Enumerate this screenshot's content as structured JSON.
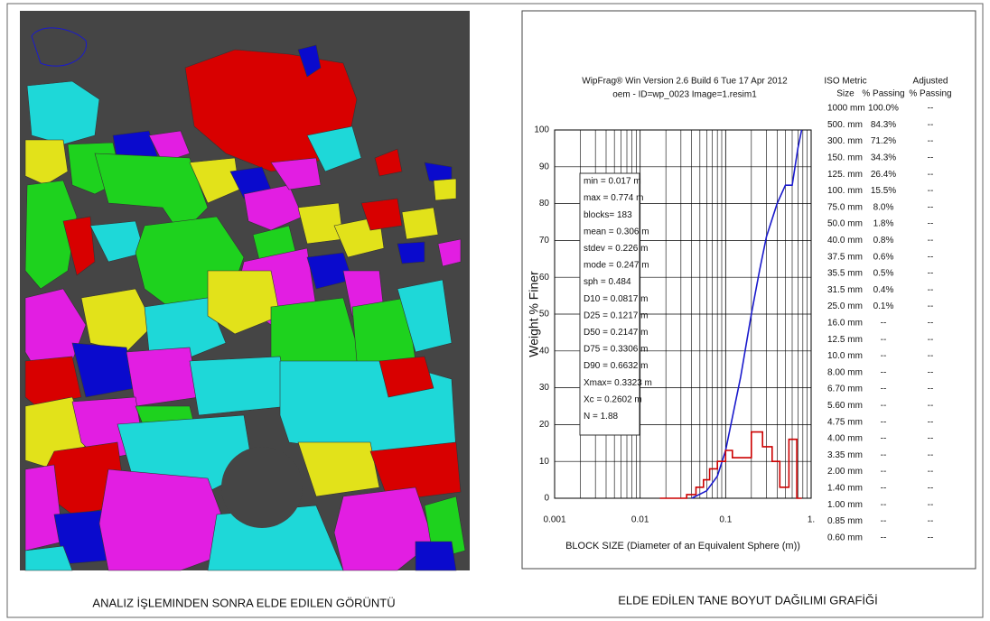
{
  "captions": {
    "left": "ANALIZ İŞLEMINDEN SONRA ELDE EDILEN GÖRÜNTÜ",
    "right": "ELDE EDİLEN TANE BOYUT DAĞILIMI GRAFİĞİ"
  },
  "chart_data": {
    "type": "line",
    "title": "WipFrag® Win Version  2.6 Build 6 Tue 17 Apr 2012",
    "subtitle": "oem -  ID=wp_0023 Image=1.resim1",
    "x_label": "BLOCK SIZE (Diameter of an Equivalent Sphere (m))",
    "y_label": "Weight % Finer",
    "xlog": true,
    "grid": true,
    "xlim": [
      0.001,
      1
    ],
    "ylim": [
      0,
      100
    ],
    "xticks": [
      0.001,
      0.01,
      0.1,
      {
        "value": 1,
        "label": "1."
      }
    ],
    "xminorticks": [
      0.002,
      0.003,
      0.004,
      0.005,
      0.006,
      0.007,
      0.008,
      0.009,
      0.02,
      0.03,
      0.04,
      0.05,
      0.06,
      0.07,
      0.08,
      0.09,
      0.2,
      0.3,
      0.4,
      0.5,
      0.6,
      0.7,
      0.8,
      0.9
    ],
    "yticks": [
      0,
      10,
      20,
      30,
      40,
      50,
      60,
      70,
      80,
      90,
      100
    ],
    "series": [
      {
        "color": "#1a1acc",
        "x": [
          0.04,
          0.06,
          0.08,
          0.1,
          0.15,
          0.2,
          0.25,
          0.3,
          0.4,
          0.5,
          0.6,
          0.7,
          0.774
        ],
        "values": [
          0,
          2,
          6,
          13,
          33,
          50,
          62,
          71,
          80,
          85,
          85,
          95,
          100
        ]
      },
      {
        "color": "#cc0000",
        "x": [
          0.017,
          0.035,
          0.035,
          0.045,
          0.045,
          0.055,
          0.055,
          0.065,
          0.065,
          0.08,
          0.08,
          0.1,
          0.1,
          0.12,
          0.12,
          0.2,
          0.2,
          0.27,
          0.27,
          0.35,
          0.35,
          0.43,
          0.43,
          0.55,
          0.55,
          0.68,
          0.68,
          0.774
        ],
        "values": [
          0,
          0,
          1,
          1,
          3,
          3,
          5,
          5,
          8,
          8,
          10,
          10,
          13,
          13,
          11,
          11,
          18,
          18,
          14,
          14,
          10,
          10,
          3,
          3,
          16,
          16,
          0,
          0
        ]
      }
    ],
    "annotations": [
      "min   = 0.017 m",
      "max   = 0.774 m",
      "blocks= 183",
      "mean  = 0.306 m",
      "stdev = 0.226 m",
      "mode  = 0.247 m",
      "sph    = 0.484",
      "D10 = 0.0817 m",
      "D25 = 0.1217 m",
      "D50 = 0.2147 m",
      "D75 = 0.3306 m",
      "D90 = 0.6632 m",
      "Xmax= 0.3323 m",
      "Xc   = 0.2602 m",
      "N    = 1.88"
    ]
  },
  "table": {
    "header": [
      [
        "ISO Metric",
        "Size"
      ],
      [
        "% Passing"
      ],
      [
        "Adjusted",
        "% Passing"
      ]
    ],
    "rows": [
      [
        "1000 mm",
        "100.0%",
        "--"
      ],
      [
        "500. mm",
        "84.3%",
        "--"
      ],
      [
        "300. mm",
        "71.2%",
        "--"
      ],
      [
        "150. mm",
        "34.3%",
        "--"
      ],
      [
        "125. mm",
        "26.4%",
        "--"
      ],
      [
        "100. mm",
        "15.5%",
        "--"
      ],
      [
        "75.0 mm",
        "8.0%",
        "--"
      ],
      [
        "50.0 mm",
        "1.8%",
        "--"
      ],
      [
        "40.0 mm",
        "0.8%",
        "--"
      ],
      [
        "37.5 mm",
        "0.6%",
        "--"
      ],
      [
        "35.5 mm",
        "0.5%",
        "--"
      ],
      [
        "31.5 mm",
        "0.4%",
        "--"
      ],
      [
        "25.0 mm",
        "0.1%",
        "--"
      ],
      [
        "16.0 mm",
        "--",
        "--"
      ],
      [
        "12.5 mm",
        "--",
        "--"
      ],
      [
        "10.0 mm",
        "--",
        "--"
      ],
      [
        "8.00 mm",
        "--",
        "--"
      ],
      [
        "6.70 mm",
        "--",
        "--"
      ],
      [
        "5.60 mm",
        "--",
        "--"
      ],
      [
        "4.75 mm",
        "--",
        "--"
      ],
      [
        "4.00 mm",
        "--",
        "--"
      ],
      [
        "3.35 mm",
        "--",
        "--"
      ],
      [
        "2.00 mm",
        "--",
        "--"
      ],
      [
        "1.40 mm",
        "--",
        "--"
      ],
      [
        "1.00 mm",
        "--",
        "--"
      ],
      [
        "0.85 mm",
        "--",
        "--"
      ],
      [
        "0.60 mm",
        "--",
        "--"
      ]
    ]
  }
}
